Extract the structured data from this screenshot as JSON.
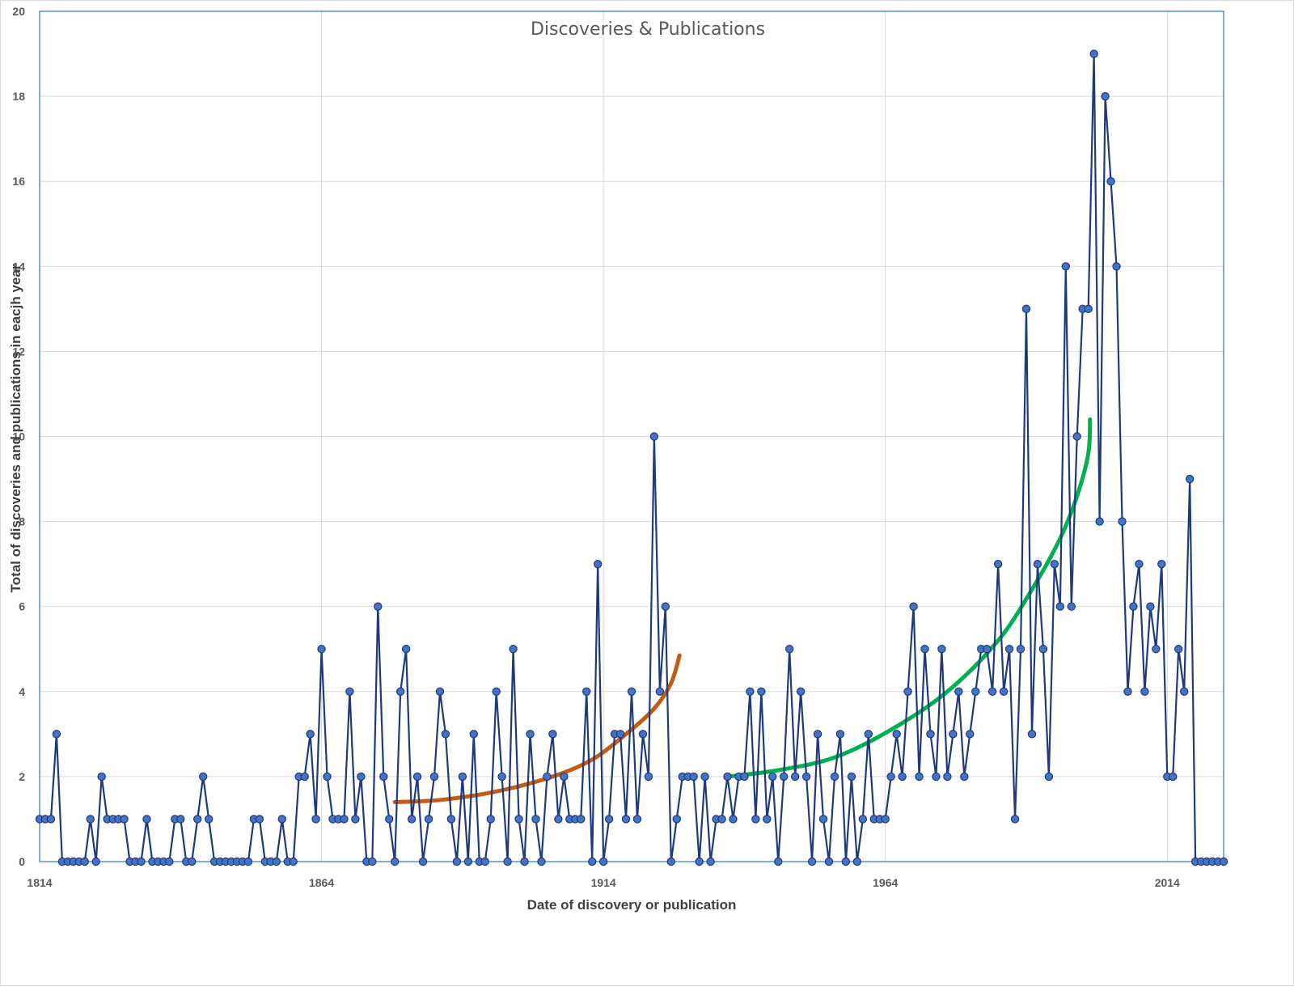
{
  "chart_data": {
    "type": "line",
    "title": "Discoveries & Publications",
    "xlabel": "Date of discovery or publication",
    "ylabel": "Total of discoveries and publications in eacjh year",
    "xlim": [
      1814,
      2024
    ],
    "ylim": [
      0,
      20
    ],
    "x_ticks": [
      "1814",
      "1864",
      "1914",
      "1964",
      "2014"
    ],
    "y_ticks": [
      "0",
      "2",
      "4",
      "6",
      "8",
      "10",
      "12",
      "14",
      "16",
      "18",
      "20"
    ],
    "grid": true,
    "legend": "none",
    "x_start": 1814,
    "series": [
      {
        "color": "#1f3a7a",
        "marker_color": "#4472c4",
        "values": [
          1,
          1,
          1,
          3,
          0,
          0,
          0,
          0,
          0,
          1,
          0,
          2,
          1,
          1,
          1,
          1,
          0,
          0,
          0,
          1,
          0,
          0,
          0,
          0,
          1,
          1,
          0,
          0,
          1,
          2,
          1,
          0,
          0,
          0,
          0,
          0,
          0,
          0,
          1,
          1,
          0,
          0,
          0,
          1,
          0,
          0,
          2,
          2,
          3,
          1,
          5,
          2,
          1,
          1,
          1,
          4,
          1,
          2,
          0,
          0,
          6,
          2,
          1,
          0,
          4,
          5,
          1,
          2,
          0,
          1,
          2,
          4,
          3,
          1,
          0,
          2,
          0,
          3,
          0,
          0,
          1,
          4,
          2,
          0,
          5,
          1,
          0,
          3,
          1,
          0,
          2,
          3,
          1,
          2,
          1,
          1,
          1,
          4,
          0,
          7,
          0,
          1,
          3,
          3,
          1,
          4,
          1,
          3,
          2,
          10,
          4,
          6,
          0,
          1,
          2,
          2,
          2,
          0,
          2,
          0,
          1,
          1,
          2,
          1,
          2,
          2,
          4,
          1,
          4,
          1,
          2,
          0,
          2,
          5,
          2,
          4,
          2,
          0,
          3,
          1,
          0,
          2,
          3,
          0,
          2,
          0,
          1,
          3,
          1,
          1,
          1,
          2,
          3,
          2,
          4,
          6,
          2,
          5,
          3,
          2,
          5,
          2,
          3,
          4,
          2,
          3,
          4,
          5,
          5,
          4,
          7,
          4,
          5,
          1,
          5,
          13,
          3,
          7,
          5,
          2,
          7,
          6,
          14,
          6,
          10,
          13,
          13,
          19,
          8,
          18,
          16,
          14,
          8,
          4,
          6,
          7,
          4,
          6,
          5,
          7,
          2,
          2,
          5,
          4,
          9,
          0,
          0,
          0,
          0,
          0,
          0
        ]
      }
    ],
    "trend_lines": [
      {
        "color": "#c55a11",
        "x": [
          1877,
          1885,
          1895,
          1905,
          1912,
          1918,
          1923,
          1926,
          1927.5
        ],
        "y": [
          1.4,
          1.45,
          1.65,
          2.0,
          2.4,
          3.0,
          3.6,
          4.2,
          4.85
        ]
      },
      {
        "color": "#00b050",
        "x": [
          1936,
          1945,
          1955,
          1965,
          1975,
          1984,
          1990,
          1995,
          1998,
          2000,
          2000.3
        ],
        "y": [
          2.0,
          2.15,
          2.45,
          3.1,
          4.0,
          5.2,
          6.4,
          7.6,
          8.6,
          9.6,
          10.4
        ]
      }
    ]
  }
}
